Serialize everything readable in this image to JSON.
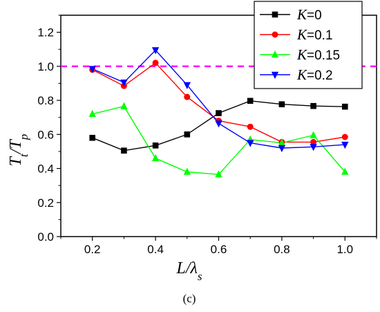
{
  "chart_data": {
    "type": "line",
    "title": "",
    "xlabel": "L/λs",
    "ylabel": "Tt/Tp",
    "panel_label": "(c)",
    "xlim": [
      0.1,
      1.1
    ],
    "ylim": [
      0.0,
      1.3
    ],
    "xticks": [
      "0.2",
      "0.4",
      "0.6",
      "0.8",
      "1.0"
    ],
    "yticks": [
      "0.0",
      "0.2",
      "0.4",
      "0.6",
      "0.8",
      "1.0",
      "1.2"
    ],
    "x": [
      0.2,
      0.3,
      0.4,
      0.5,
      0.6,
      0.7,
      0.8,
      0.9,
      1.0
    ],
    "reference_line": {
      "y": 1.0,
      "color": "#ff00ff",
      "style": "dashed"
    },
    "legend_position": "top-right",
    "series": [
      {
        "name": "K=0",
        "legend_var": "K",
        "legend_val": "=0",
        "color": "#000000",
        "marker": "square",
        "values": [
          0.58,
          0.505,
          0.535,
          0.6,
          0.725,
          0.797,
          0.777,
          0.767,
          0.763
        ]
      },
      {
        "name": "K=0.1",
        "legend_var": "K",
        "legend_val": "=0.1",
        "color": "#ff0000",
        "marker": "circle",
        "values": [
          0.98,
          0.885,
          1.02,
          0.82,
          0.68,
          0.645,
          0.555,
          0.555,
          0.585
        ]
      },
      {
        "name": "K=0.15",
        "legend_var": "K",
        "legend_val": "=0.15",
        "color": "#00ff00",
        "marker": "triangle-up",
        "values": [
          0.72,
          0.765,
          0.46,
          0.38,
          0.365,
          0.57,
          0.55,
          0.595,
          0.38
        ]
      },
      {
        "name": "K=0.2",
        "legend_var": "K",
        "legend_val": "=0.2",
        "color": "#0000ff",
        "marker": "triangle-down",
        "values": [
          0.985,
          0.905,
          1.095,
          0.89,
          0.665,
          0.55,
          0.52,
          0.527,
          0.54
        ]
      }
    ]
  }
}
